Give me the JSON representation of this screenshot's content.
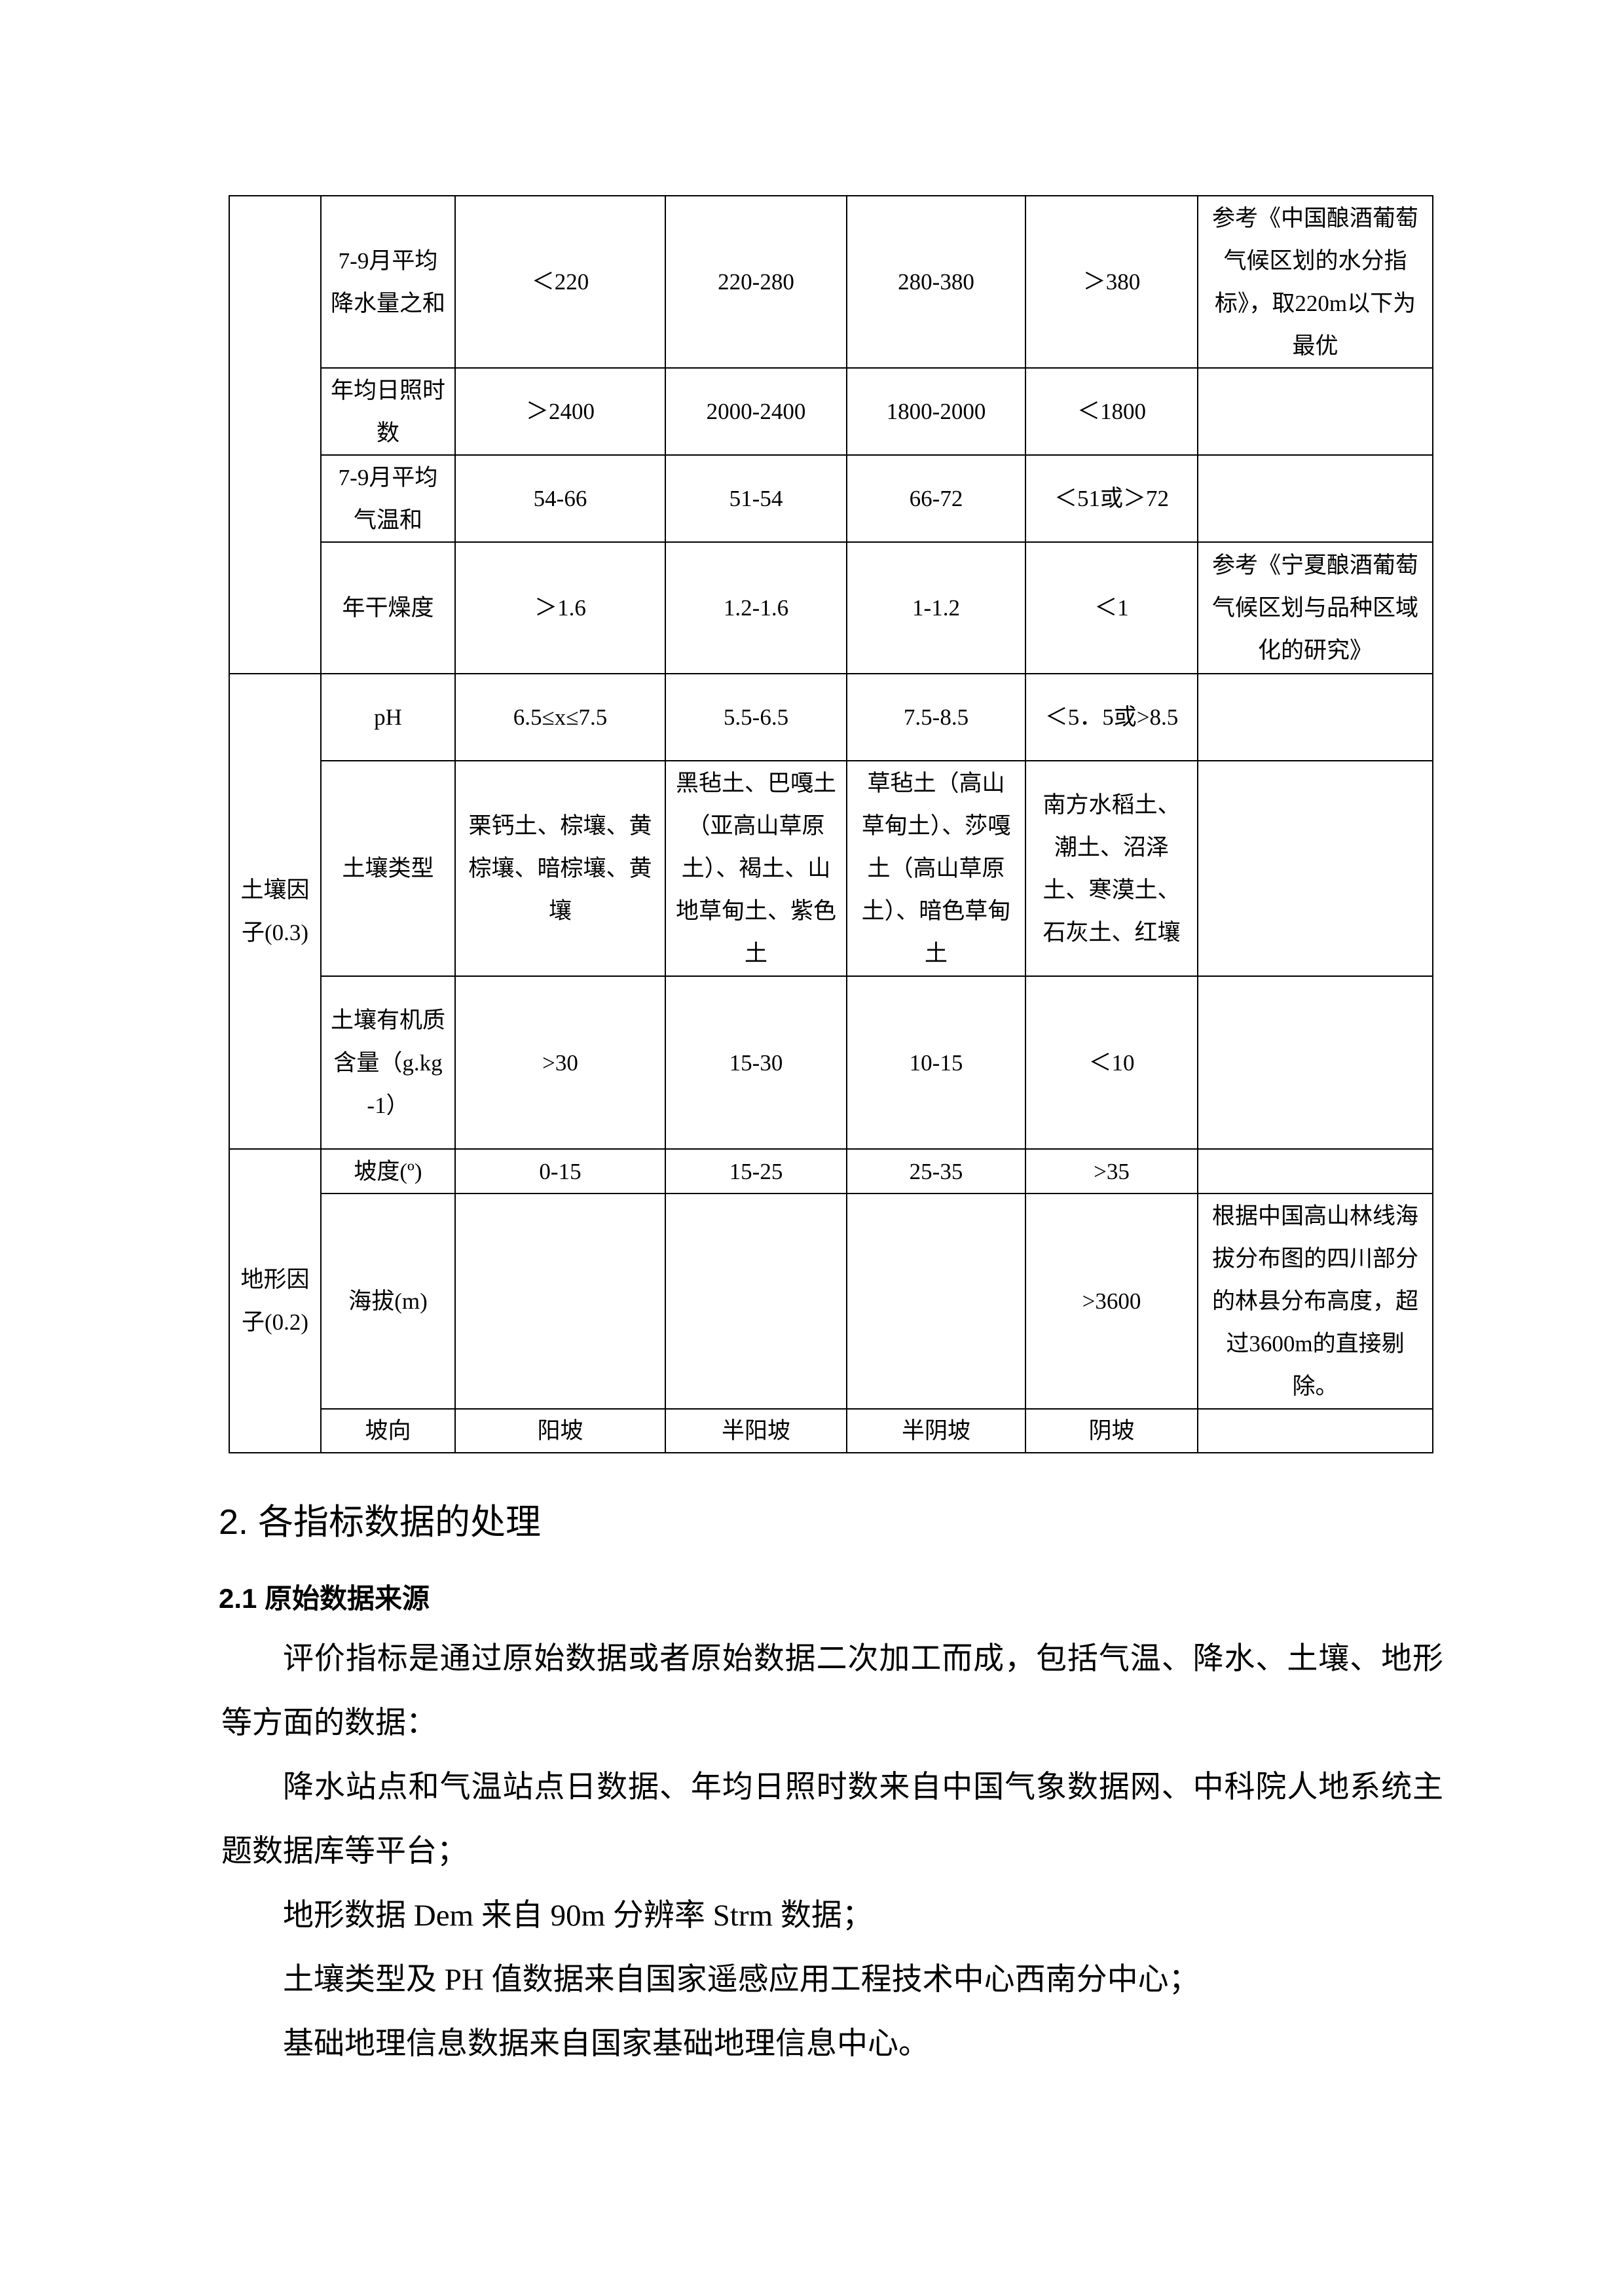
{
  "table": {
    "rows": [
      {
        "group": "",
        "factor": "7-9月平均降水量之和",
        "c1": "＜220",
        "c2": "220-280",
        "c3": "280-380",
        "c4": "＞380",
        "note": "参考《中国酿酒葡萄气候区划的水分指标》，取220m以下为最优"
      },
      {
        "factor": "年均日照时数",
        "c1": "＞2400",
        "c2": "2000-2400",
        "c3": "1800-2000",
        "c4": "＜1800",
        "note": ""
      },
      {
        "factor": "7-9月平均气温和",
        "c1": "54-66",
        "c2": "51-54",
        "c3": "66-72",
        "c4": "＜51或＞72",
        "note": ""
      },
      {
        "factor": "年干燥度",
        "c1": "＞1.6",
        "c2": "1.2-1.6",
        "c3": "1-1.2",
        "c4": "＜1",
        "note": "参考《宁夏酿酒葡萄气候区划与品种区域化的研究》"
      },
      {
        "group": "土壤因子(0.3)",
        "factor": "pH",
        "c1": "6.5≤x≤7.5",
        "c2": "5.5-6.5",
        "c3": "7.5-8.5",
        "c4": "＜5．5或>8.5",
        "note": ""
      },
      {
        "factor": "土壤类型",
        "c1": "栗钙土、棕壤、黄棕壤、暗棕壤、黄壤",
        "c2": "黑毡土、巴嘎土（亚高山草原土）、褐土、山地草甸土、紫色土",
        "c3": "草毡土（高山草甸土）、莎嘎土（高山草原土）、暗色草甸土",
        "c4": "南方水稻土、潮土、沼泽土、寒漠土、石灰土、红壤",
        "note": ""
      },
      {
        "factor": "土壤有机质含量（g.kg-1）",
        "c1": ">30",
        "c2": "15-30",
        "c3": "10-15",
        "c4": "＜10",
        "note": ""
      },
      {
        "group": "地形因子(0.2)",
        "factor": "坡度(º)",
        "c1": "0-15",
        "c2": "15-25",
        "c3": "25-35",
        "c4": ">35",
        "note": ""
      },
      {
        "factor": "海拔(m)",
        "c1": "",
        "c2": "",
        "c3": "",
        "c4": ">3600",
        "note": "根据中国高山林线海拔分布图的四川部分的林县分布高度，超过3600m的直接剔除。"
      },
      {
        "factor": "坡向",
        "c1": "阳坡",
        "c2": "半阳坡",
        "c3": "半阴坡",
        "c4": "阴坡",
        "note": ""
      }
    ]
  },
  "section": {
    "title": "2.  各指标数据的处理",
    "subtitle": "2.1  原始数据来源"
  },
  "paragraphs": [
    "评价指标是通过原始数据或者原始数据二次加工而成，包括气温、降水、土壤、地形等方面的数据：",
    "降水站点和气温站点日数据、年均日照时数来自中国气象数据网、中科院人地系统主题数据库等平台；",
    "地形数据 Dem 来自 90m 分辨率 Strm 数据；",
    "土壤类型及 PH 值数据来自国家遥感应用工程技术中心西南分中心；",
    "基础地理信息数据来自国家基础地理信息中心。"
  ]
}
